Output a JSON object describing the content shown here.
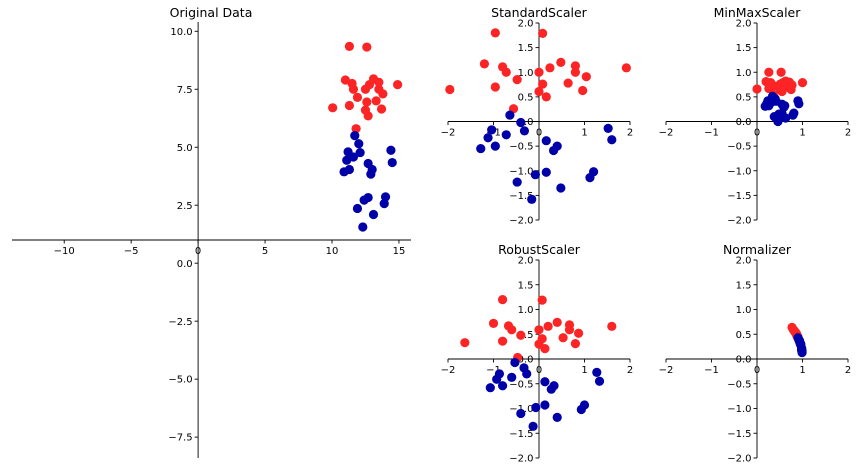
{
  "chart_data": [
    {
      "type": "scatter",
      "title": "Original Data",
      "xlim": [
        -13.9,
        15.9
      ],
      "ylim": [
        -8.4,
        10.4
      ],
      "xticks": [
        -10,
        -5,
        0,
        5,
        10,
        15
      ],
      "xtick_labels": [
        "−10",
        "−5",
        "0",
        "5",
        "10",
        "15"
      ],
      "yticks": [
        10,
        7.5,
        5,
        2.5,
        0,
        -2.5,
        -5,
        -7.5
      ],
      "ytick_labels": [
        "10.0",
        "7.5",
        "5.0",
        "2.5",
        "0.0",
        "−2.5",
        "−5.0",
        "−7.5"
      ],
      "series": [
        {
          "color": "#fc2424",
          "points": [
            [
              11.3,
              9.35
            ],
            [
              12.6,
              9.32
            ],
            [
              11.0,
              7.9
            ],
            [
              11.5,
              7.75
            ],
            [
              11.6,
              7.5
            ],
            [
              12.5,
              7.5
            ],
            [
              12.8,
              7.7
            ],
            [
              13.1,
              7.95
            ],
            [
              13.5,
              7.8
            ],
            [
              13.5,
              7.5
            ],
            [
              13.8,
              7.3
            ],
            [
              14.9,
              7.7
            ],
            [
              11.9,
              7.15
            ],
            [
              12.6,
              6.95
            ],
            [
              13.3,
              7.0
            ],
            [
              10.05,
              6.7
            ],
            [
              11.3,
              6.8
            ],
            [
              12.5,
              6.6
            ],
            [
              12.7,
              6.35
            ],
            [
              13.7,
              6.65
            ],
            [
              11.8,
              5.8
            ]
          ]
        },
        {
          "color": "#0000a8",
          "points": [
            [
              11.7,
              5.5
            ],
            [
              12.0,
              5.15
            ],
            [
              14.4,
              4.87
            ],
            [
              11.2,
              4.8
            ],
            [
              12.1,
              4.77
            ],
            [
              11.6,
              4.58
            ],
            [
              11.1,
              4.44
            ],
            [
              14.5,
              4.34
            ],
            [
              12.7,
              4.3
            ],
            [
              11.3,
              4.04
            ],
            [
              10.9,
              3.94
            ],
            [
              13.0,
              4.04
            ],
            [
              12.9,
              3.84
            ],
            [
              12.7,
              2.83
            ],
            [
              12.4,
              2.72
            ],
            [
              14.0,
              2.86
            ],
            [
              13.9,
              2.57
            ],
            [
              11.9,
              2.36
            ],
            [
              13.1,
              2.1
            ],
            [
              12.3,
              1.56
            ]
          ]
        }
      ]
    },
    {
      "type": "scatter",
      "title": "StandardScaler",
      "xlim": [
        -2,
        2
      ],
      "ylim": [
        -2,
        2
      ],
      "xticks": [
        -2,
        -1,
        0,
        1,
        2
      ],
      "xtick_labels": [
        "−2",
        "−1",
        "0",
        "1",
        "2"
      ],
      "yticks": [
        2,
        1.5,
        1,
        0.5,
        0,
        -0.5,
        -1,
        -1.5,
        -2
      ],
      "ytick_labels": [
        "2.0",
        "1.5",
        "1.0",
        "0.5",
        "0.0",
        "−0.5",
        "−1.0",
        "−1.5",
        "−2.0"
      ],
      "series": [
        {
          "color": "#fc2424",
          "points": [
            [
              -0.96,
              1.8
            ],
            [
              0.08,
              1.79
            ],
            [
              -1.2,
              1.17
            ],
            [
              -0.8,
              1.11
            ],
            [
              -0.72,
              1.0
            ],
            [
              0,
              1.0
            ],
            [
              0.24,
              1.09
            ],
            [
              0.48,
              1.2
            ],
            [
              0.8,
              1.13
            ],
            [
              0.8,
              1.0
            ],
            [
              1.04,
              0.91
            ],
            [
              1.92,
              1.09
            ],
            [
              -0.48,
              0.85
            ],
            [
              0.08,
              0.76
            ],
            [
              0.64,
              0.78
            ],
            [
              -1.96,
              0.65
            ],
            [
              -0.96,
              0.7
            ],
            [
              0,
              0.61
            ],
            [
              0.16,
              0.5
            ],
            [
              0.96,
              0.63
            ],
            [
              -0.56,
              0.26
            ]
          ]
        },
        {
          "color": "#0000a8",
          "points": [
            [
              -0.64,
              0.13
            ],
            [
              -0.4,
              -0.02
            ],
            [
              1.52,
              -0.14
            ],
            [
              -1.04,
              -0.17
            ],
            [
              -0.32,
              -0.19
            ],
            [
              -0.72,
              -0.27
            ],
            [
              -1.12,
              -0.33
            ],
            [
              1.6,
              -0.37
            ],
            [
              0.16,
              -0.39
            ],
            [
              -0.96,
              -0.5
            ],
            [
              -1.28,
              -0.55
            ],
            [
              0.4,
              -0.5
            ],
            [
              0.32,
              -0.59
            ],
            [
              0.16,
              -1.03
            ],
            [
              -0.08,
              -1.08
            ],
            [
              1.2,
              -1.02
            ],
            [
              1.12,
              -1.14
            ],
            [
              -0.48,
              -1.23
            ],
            [
              0.48,
              -1.35
            ],
            [
              -0.16,
              -1.58
            ]
          ]
        }
      ]
    },
    {
      "type": "scatter",
      "title": "MinMaxScaler",
      "xlim": [
        -2,
        2
      ],
      "ylim": [
        -2,
        2
      ],
      "xticks": [
        -2,
        -1,
        0,
        1,
        2
      ],
      "xtick_labels": [
        "−2",
        "−1",
        "0",
        "1",
        "2"
      ],
      "yticks": [
        2,
        1.5,
        1,
        0.5,
        0,
        -0.5,
        -1,
        -1.5,
        -2
      ],
      "ytick_labels": [
        "2.0",
        "1.5",
        "1.0",
        "0.5",
        "0.0",
        "−0.5",
        "−1.0",
        "−1.5",
        "−2.0"
      ],
      "series": [
        {
          "color": "#fc2424",
          "points": [
            [
              0.26,
              1.0
            ],
            [
              0.53,
              1.0
            ],
            [
              0.2,
              0.81
            ],
            [
              0.3,
              0.79
            ],
            [
              0.32,
              0.76
            ],
            [
              0.51,
              0.76
            ],
            [
              0.57,
              0.79
            ],
            [
              0.63,
              0.82
            ],
            [
              0.71,
              0.8
            ],
            [
              0.71,
              0.76
            ],
            [
              0.77,
              0.74
            ],
            [
              1.0,
              0.79
            ],
            [
              0.38,
              0.72
            ],
            [
              0.53,
              0.69
            ],
            [
              0.67,
              0.7
            ],
            [
              0,
              0.66
            ],
            [
              0.26,
              0.67
            ],
            [
              0.51,
              0.65
            ],
            [
              0.55,
              0.61
            ],
            [
              0.75,
              0.65
            ],
            [
              0.36,
              0.54
            ]
          ]
        },
        {
          "color": "#0000a8",
          "points": [
            [
              0.34,
              0.51
            ],
            [
              0.4,
              0.46
            ],
            [
              0.9,
              0.42
            ],
            [
              0.24,
              0.42
            ],
            [
              0.42,
              0.41
            ],
            [
              0.32,
              0.39
            ],
            [
              0.22,
              0.37
            ],
            [
              0.92,
              0.36
            ],
            [
              0.55,
              0.35
            ],
            [
              0.26,
              0.32
            ],
            [
              0.18,
              0.31
            ],
            [
              0.61,
              0.32
            ],
            [
              0.59,
              0.29
            ],
            [
              0.55,
              0.16
            ],
            [
              0.48,
              0.15
            ],
            [
              0.81,
              0.17
            ],
            [
              0.79,
              0.13
            ],
            [
              0.38,
              0.1
            ],
            [
              0.63,
              0.07
            ],
            [
              0.46,
              0
            ]
          ]
        }
      ]
    },
    {
      "type": "scatter",
      "title": "RobustScaler",
      "xlim": [
        -2,
        2
      ],
      "ylim": [
        -2,
        2
      ],
      "xticks": [
        -2,
        -1,
        0,
        1,
        2
      ],
      "xtick_labels": [
        "−2",
        "−1",
        "0",
        "1",
        "2"
      ],
      "yticks": [
        2,
        1.5,
        1,
        0.5,
        0,
        -0.5,
        -1,
        -1.5,
        -2
      ],
      "ytick_labels": [
        "2.0",
        "1.5",
        "1.0",
        "0.5",
        "0.0",
        "−0.5",
        "−1.0",
        "−1.5",
        "−2.0"
      ],
      "series": [
        {
          "color": "#fc2424",
          "points": [
            [
              -0.8,
              1.2
            ],
            [
              0.07,
              1.19
            ],
            [
              -1.0,
              0.72
            ],
            [
              -0.67,
              0.67
            ],
            [
              -0.6,
              0.59
            ],
            [
              0,
              0.59
            ],
            [
              0.2,
              0.66
            ],
            [
              0.4,
              0.74
            ],
            [
              0.67,
              0.69
            ],
            [
              0.67,
              0.59
            ],
            [
              0.87,
              0.52
            ],
            [
              1.6,
              0.66
            ],
            [
              -0.4,
              0.48
            ],
            [
              0.07,
              0.41
            ],
            [
              0.53,
              0.43
            ],
            [
              -1.63,
              0.33
            ],
            [
              -0.8,
              0.36
            ],
            [
              0,
              0.3
            ],
            [
              0.13,
              0.21
            ],
            [
              0.8,
              0.31
            ],
            [
              -0.47,
              0.03
            ]
          ]
        },
        {
          "color": "#0000a8",
          "points": [
            [
              -0.53,
              -0.07
            ],
            [
              -0.33,
              -0.18
            ],
            [
              1.27,
              -0.27
            ],
            [
              -0.87,
              -0.3
            ],
            [
              -0.27,
              -0.3
            ],
            [
              -0.6,
              -0.37
            ],
            [
              -0.93,
              -0.41
            ],
            [
              1.33,
              -0.45
            ],
            [
              0.13,
              -0.46
            ],
            [
              -0.8,
              -0.54
            ],
            [
              -1.07,
              -0.58
            ],
            [
              0.33,
              -0.54
            ],
            [
              0.27,
              -0.61
            ],
            [
              0.13,
              -0.93
            ],
            [
              -0.07,
              -0.98
            ],
            [
              1.0,
              -0.93
            ],
            [
              0.93,
              -1.02
            ],
            [
              -0.4,
              -1.1
            ],
            [
              0.4,
              -1.18
            ],
            [
              -0.13,
              -1.36
            ]
          ]
        }
      ]
    },
    {
      "type": "scatter",
      "title": "Normalizer",
      "xlim": [
        -2,
        2
      ],
      "ylim": [
        -2,
        2
      ],
      "xticks": [
        -2,
        -1,
        0,
        1,
        2
      ],
      "xtick_labels": [
        "−2",
        "−1",
        "0",
        "1",
        "2"
      ],
      "yticks": [
        2,
        1.5,
        1,
        0.5,
        0,
        -0.5,
        -1,
        -1.5,
        -2
      ],
      "ytick_labels": [
        "2.0",
        "1.5",
        "1.0",
        "0.5",
        "0.0",
        "−0.5",
        "−1.0",
        "−1.5",
        "−2.0"
      ],
      "series": [
        {
          "color": "#fc2424",
          "points": [
            [
              0.77,
              0.64
            ],
            [
              0.8,
              0.59
            ],
            [
              0.81,
              0.58
            ],
            [
              0.83,
              0.56
            ],
            [
              0.84,
              0.54
            ],
            [
              0.86,
              0.51
            ],
            [
              0.86,
              0.52
            ],
            [
              0.86,
              0.52
            ],
            [
              0.87,
              0.5
            ],
            [
              0.87,
              0.49
            ],
            [
              0.88,
              0.47
            ],
            [
              0.89,
              0.46
            ],
            [
              0.86,
              0.52
            ],
            [
              0.88,
              0.48
            ],
            [
              0.88,
              0.47
            ],
            [
              0.83,
              0.55
            ],
            [
              0.86,
              0.52
            ],
            [
              0.88,
              0.47
            ],
            [
              0.89,
              0.45
            ],
            [
              0.9,
              0.44
            ],
            [
              0.9,
              0.44
            ]
          ]
        },
        {
          "color": "#0000a8",
          "points": [
            [
              0.9,
              0.43
            ],
            [
              0.92,
              0.39
            ],
            [
              0.95,
              0.32
            ],
            [
              0.92,
              0.39
            ],
            [
              0.93,
              0.37
            ],
            [
              0.93,
              0.37
            ],
            [
              0.93,
              0.37
            ],
            [
              0.96,
              0.29
            ],
            [
              0.95,
              0.32
            ],
            [
              0.94,
              0.34
            ],
            [
              0.94,
              0.34
            ],
            [
              0.96,
              0.3
            ],
            [
              0.96,
              0.29
            ],
            [
              0.98,
              0.22
            ],
            [
              0.98,
              0.21
            ],
            [
              0.98,
              0.2
            ],
            [
              0.98,
              0.18
            ],
            [
              0.98,
              0.19
            ],
            [
              0.99,
              0.16
            ],
            [
              0.99,
              0.13
            ]
          ]
        }
      ]
    }
  ]
}
